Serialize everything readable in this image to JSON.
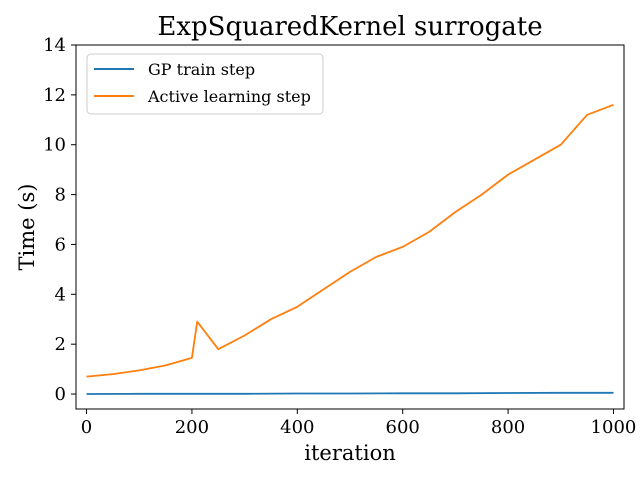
{
  "chart_data": {
    "type": "line",
    "title": "ExpSquaredKernel surrogate",
    "xlabel": "iteration",
    "ylabel": "Time (s)",
    "xlim": [
      -20,
      1020
    ],
    "ylim": [
      -0.6,
      14
    ],
    "xticks": [
      0,
      200,
      400,
      600,
      800,
      1000
    ],
    "yticks": [
      0,
      2,
      4,
      6,
      8,
      10,
      12,
      14
    ],
    "grid": false,
    "legend_position": "upper-left",
    "series": [
      {
        "name": "GP train step",
        "color": "#1f77b4",
        "x": [
          0,
          100,
          200,
          300,
          400,
          500,
          600,
          700,
          800,
          900,
          1000
        ],
        "y": [
          0.0,
          0.01,
          0.01,
          0.01,
          0.02,
          0.02,
          0.03,
          0.03,
          0.04,
          0.05,
          0.05
        ]
      },
      {
        "name": "Active learning step",
        "color": "#ff7f0e",
        "x": [
          0,
          50,
          100,
          150,
          200,
          210,
          250,
          300,
          350,
          400,
          450,
          500,
          550,
          600,
          650,
          700,
          750,
          800,
          850,
          900,
          950,
          1000
        ],
        "y": [
          0.7,
          0.8,
          0.95,
          1.15,
          1.45,
          2.9,
          1.8,
          2.35,
          3.0,
          3.5,
          4.2,
          4.9,
          5.5,
          5.9,
          6.5,
          7.3,
          8.0,
          8.8,
          9.4,
          10.0,
          11.2,
          11.6
        ]
      }
    ]
  }
}
